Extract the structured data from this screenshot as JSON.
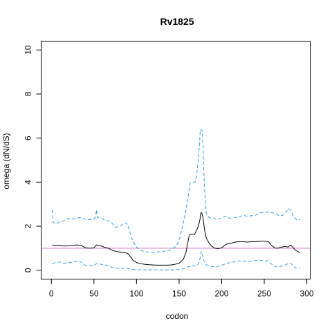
{
  "chart_data": {
    "type": "line",
    "title": "Rv1825",
    "xlabel": "codon",
    "ylabel": "omega (dN/dS)",
    "xlim": [
      -12,
      304
    ],
    "ylim": [
      -0.4,
      10.4
    ],
    "x_ticks": [
      0,
      50,
      100,
      150,
      200,
      250,
      300
    ],
    "y_ticks": [
      0,
      2,
      4,
      6,
      8,
      10
    ],
    "reference_line": {
      "y": 1,
      "color": "#c774c7"
    },
    "grid": false,
    "legend": "none",
    "series": [
      {
        "role": "estimate",
        "style": "solid",
        "color": "#000000",
        "points": [
          [
            1,
            1.15
          ],
          [
            5,
            1.12
          ],
          [
            10,
            1.13
          ],
          [
            15,
            1.1
          ],
          [
            20,
            1.12
          ],
          [
            25,
            1.13
          ],
          [
            30,
            1.15
          ],
          [
            35,
            1.13
          ],
          [
            40,
            1.02
          ],
          [
            45,
            1.0
          ],
          [
            50,
            1.02
          ],
          [
            53,
            1.15
          ],
          [
            57,
            1.12
          ],
          [
            62,
            1.05
          ],
          [
            67,
            1.0
          ],
          [
            72,
            0.9
          ],
          [
            77,
            0.85
          ],
          [
            82,
            0.82
          ],
          [
            87,
            0.8
          ],
          [
            90,
            0.75
          ],
          [
            93,
            0.6
          ],
          [
            96,
            0.45
          ],
          [
            100,
            0.35
          ],
          [
            105,
            0.3
          ],
          [
            110,
            0.27
          ],
          [
            115,
            0.25
          ],
          [
            120,
            0.24
          ],
          [
            125,
            0.23
          ],
          [
            130,
            0.23
          ],
          [
            135,
            0.23
          ],
          [
            140,
            0.24
          ],
          [
            145,
            0.27
          ],
          [
            150,
            0.32
          ],
          [
            155,
            0.5
          ],
          [
            158,
            0.8
          ],
          [
            160,
            1.2
          ],
          [
            162,
            1.6
          ],
          [
            165,
            1.65
          ],
          [
            168,
            1.62
          ],
          [
            171,
            1.85
          ],
          [
            173,
            2.05
          ],
          [
            174.5,
            2.3
          ],
          [
            175.5,
            2.6
          ],
          [
            176.5,
            2.62
          ],
          [
            178,
            2.4
          ],
          [
            180,
            1.8
          ],
          [
            182,
            1.45
          ],
          [
            185,
            1.25
          ],
          [
            188,
            1.1
          ],
          [
            192,
            1.0
          ],
          [
            196,
            0.98
          ],
          [
            200,
            1.02
          ],
          [
            205,
            1.18
          ],
          [
            210,
            1.22
          ],
          [
            215,
            1.27
          ],
          [
            220,
            1.3
          ],
          [
            225,
            1.3
          ],
          [
            230,
            1.28
          ],
          [
            235,
            1.3
          ],
          [
            240,
            1.3
          ],
          [
            245,
            1.32
          ],
          [
            250,
            1.32
          ],
          [
            255,
            1.3
          ],
          [
            258,
            1.15
          ],
          [
            262,
            1.02
          ],
          [
            266,
            1.0
          ],
          [
            270,
            1.05
          ],
          [
            275,
            1.08
          ],
          [
            278,
            1.05
          ],
          [
            281,
            1.15
          ],
          [
            284,
            1.02
          ],
          [
            287,
            0.9
          ],
          [
            292,
            0.8
          ]
        ]
      },
      {
        "role": "upper bound",
        "style": "dashed",
        "color": "#2f9fe0",
        "points": [
          [
            1,
            2.75
          ],
          [
            2,
            2.2
          ],
          [
            5,
            2.1
          ],
          [
            10,
            2.2
          ],
          [
            15,
            2.25
          ],
          [
            20,
            2.35
          ],
          [
            25,
            2.32
          ],
          [
            30,
            2.38
          ],
          [
            35,
            2.4
          ],
          [
            40,
            2.32
          ],
          [
            45,
            2.3
          ],
          [
            50,
            2.32
          ],
          [
            52,
            2.45
          ],
          [
            53,
            2.75
          ],
          [
            54,
            2.4
          ],
          [
            58,
            2.35
          ],
          [
            62,
            2.3
          ],
          [
            66,
            2.25
          ],
          [
            70,
            2.2
          ],
          [
            75,
            1.95
          ],
          [
            80,
            2.0
          ],
          [
            84,
            2.1
          ],
          [
            88,
            2.15
          ],
          [
            90,
            2.05
          ],
          [
            93,
            1.6
          ],
          [
            96,
            1.3
          ],
          [
            100,
            1.05
          ],
          [
            105,
            0.9
          ],
          [
            110,
            0.85
          ],
          [
            115,
            0.82
          ],
          [
            120,
            0.8
          ],
          [
            125,
            0.83
          ],
          [
            130,
            0.85
          ],
          [
            135,
            0.88
          ],
          [
            140,
            0.92
          ],
          [
            145,
            1.05
          ],
          [
            148,
            1.2
          ],
          [
            151,
            1.5
          ],
          [
            154,
            2.0
          ],
          [
            157,
            2.5
          ],
          [
            160,
            3.2
          ],
          [
            163,
            3.95
          ],
          [
            166,
            4.0
          ],
          [
            169,
            4.0
          ],
          [
            171,
            4.45
          ],
          [
            173,
            5.2
          ],
          [
            174,
            5.8
          ],
          [
            175,
            6.4
          ],
          [
            177,
            6.35
          ],
          [
            178,
            5.8
          ],
          [
            179,
            4.5
          ],
          [
            180,
            3.6
          ],
          [
            182,
            2.6
          ],
          [
            185,
            2.4
          ],
          [
            190,
            2.35
          ],
          [
            195,
            2.3
          ],
          [
            200,
            2.38
          ],
          [
            205,
            2.45
          ],
          [
            210,
            2.35
          ],
          [
            215,
            2.4
          ],
          [
            220,
            2.4
          ],
          [
            225,
            2.5
          ],
          [
            230,
            2.45
          ],
          [
            235,
            2.48
          ],
          [
            240,
            2.5
          ],
          [
            245,
            2.6
          ],
          [
            250,
            2.62
          ],
          [
            255,
            2.65
          ],
          [
            260,
            2.6
          ],
          [
            265,
            2.55
          ],
          [
            268,
            2.45
          ],
          [
            272,
            2.5
          ],
          [
            275,
            2.6
          ],
          [
            278,
            2.8
          ],
          [
            281,
            2.75
          ],
          [
            284,
            2.45
          ],
          [
            288,
            2.3
          ],
          [
            292,
            2.3
          ]
        ]
      },
      {
        "role": "lower bound",
        "style": "dashed",
        "color": "#2f9fe0",
        "points": [
          [
            1,
            0.3
          ],
          [
            5,
            0.35
          ],
          [
            10,
            0.38
          ],
          [
            15,
            0.32
          ],
          [
            20,
            0.35
          ],
          [
            25,
            0.37
          ],
          [
            30,
            0.4
          ],
          [
            35,
            0.38
          ],
          [
            40,
            0.22
          ],
          [
            45,
            0.2
          ],
          [
            50,
            0.22
          ],
          [
            53,
            0.3
          ],
          [
            57,
            0.28
          ],
          [
            62,
            0.25
          ],
          [
            67,
            0.2
          ],
          [
            72,
            0.12
          ],
          [
            77,
            0.1
          ],
          [
            82,
            0.08
          ],
          [
            87,
            0.1
          ],
          [
            90,
            0.08
          ],
          [
            94,
            0.05
          ],
          [
            98,
            0.02
          ],
          [
            105,
            0.02
          ],
          [
            115,
            0.02
          ],
          [
            125,
            0.02
          ],
          [
            135,
            0.02
          ],
          [
            145,
            0.02
          ],
          [
            152,
            0.03
          ],
          [
            156,
            0.08
          ],
          [
            160,
            0.15
          ],
          [
            165,
            0.2
          ],
          [
            170,
            0.2
          ],
          [
            173,
            0.3
          ],
          [
            175,
            0.6
          ],
          [
            176,
            0.85
          ],
          [
            177,
            0.8
          ],
          [
            179,
            0.45
          ],
          [
            182,
            0.25
          ],
          [
            186,
            0.2
          ],
          [
            192,
            0.15
          ],
          [
            198,
            0.2
          ],
          [
            205,
            0.3
          ],
          [
            210,
            0.35
          ],
          [
            215,
            0.38
          ],
          [
            220,
            0.42
          ],
          [
            225,
            0.42
          ],
          [
            230,
            0.4
          ],
          [
            235,
            0.42
          ],
          [
            240,
            0.44
          ],
          [
            245,
            0.45
          ],
          [
            250,
            0.42
          ],
          [
            255,
            0.43
          ],
          [
            258,
            0.3
          ],
          [
            262,
            0.18
          ],
          [
            266,
            0.15
          ],
          [
            270,
            0.18
          ],
          [
            275,
            0.25
          ],
          [
            278,
            0.3
          ],
          [
            281,
            0.32
          ],
          [
            284,
            0.2
          ],
          [
            287,
            0.1
          ],
          [
            292,
            0.08
          ]
        ]
      }
    ]
  }
}
